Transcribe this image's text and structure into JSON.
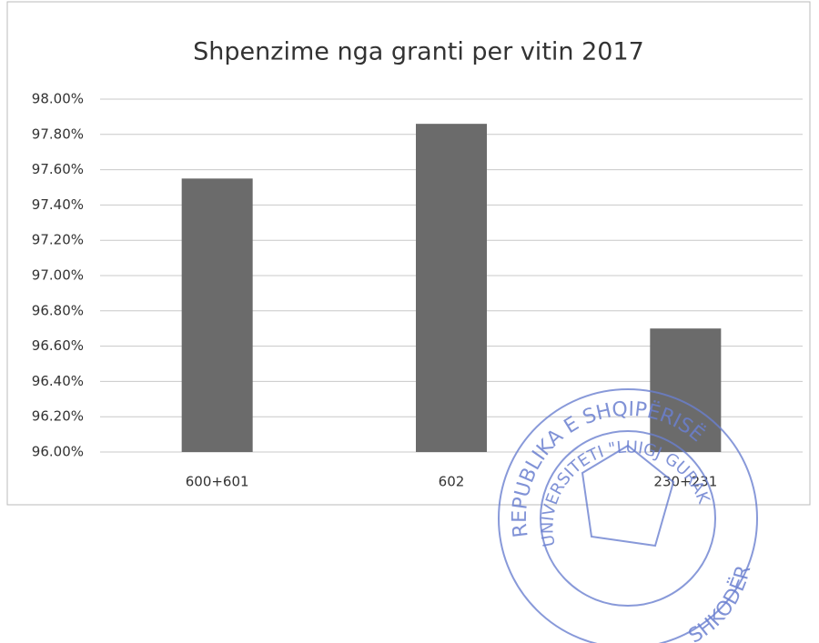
{
  "chart_data": {
    "type": "bar",
    "title": "Shpenzime nga granti per vitin 2017",
    "categories": [
      "600+601",
      "602",
      "230+231"
    ],
    "values": [
      97.55,
      97.86,
      96.7
    ],
    "color": "#6b6b6b",
    "ylim": [
      96.0,
      98.0
    ],
    "yticks": [
      {
        "value": 96.0,
        "label": "96.00%"
      },
      {
        "value": 96.2,
        "label": "96.20%"
      },
      {
        "value": 96.4,
        "label": "96.40%"
      },
      {
        "value": 96.6,
        "label": "96.60%"
      },
      {
        "value": 96.8,
        "label": "96.80%"
      },
      {
        "value": 97.0,
        "label": "97.00%"
      },
      {
        "value": 97.2,
        "label": "97.20%"
      },
      {
        "value": 97.4,
        "label": "97.40%"
      },
      {
        "value": 97.6,
        "label": "97.60%"
      },
      {
        "value": 97.8,
        "label": "97.80%"
      },
      {
        "value": 98.0,
        "label": "98.00%"
      }
    ],
    "grid": true,
    "annotations": [
      "REPUBLIKA E SHQIPËRISË",
      "UNIVERSITETI \"LUIGJ GURAKUQI\"",
      "SHKODËR"
    ]
  }
}
